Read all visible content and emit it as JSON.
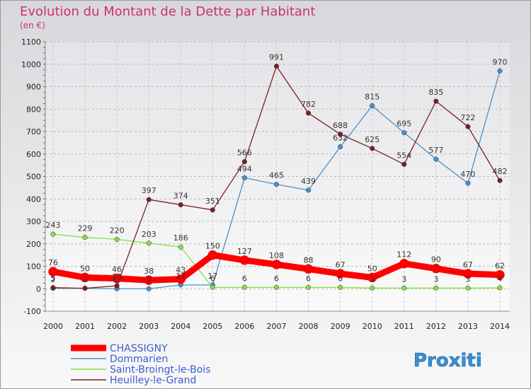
{
  "chart_data": {
    "type": "line",
    "title": "Evolution du Montant de la Dette par Habitant",
    "subtitle": "(en €)",
    "x": [
      2000,
      2001,
      2002,
      2003,
      2004,
      2005,
      2006,
      2007,
      2008,
      2009,
      2010,
      2011,
      2012,
      2013,
      2014
    ],
    "yticks": [
      -100,
      0,
      100,
      200,
      300,
      400,
      500,
      600,
      700,
      800,
      900,
      1000,
      1100
    ],
    "ylim": [
      -100,
      1100
    ],
    "grid": true,
    "legend_position": "bottom-left",
    "series": [
      {
        "name": "CHASSIGNY",
        "color": "#ff0000",
        "values": [
          76,
          50,
          46,
          38,
          43,
          150,
          127,
          108,
          88,
          67,
          50,
          112,
          90,
          67,
          62
        ]
      },
      {
        "name": "Dommarien",
        "color": "#4a90c8",
        "values": [
          2,
          2,
          0,
          0,
          17,
          17,
          494,
          465,
          439,
          632,
          815,
          695,
          577,
          470,
          970
        ]
      },
      {
        "name": "Saint-Broingt-le-Bois",
        "color": "#88dd44",
        "values": [
          243,
          229,
          220,
          203,
          186,
          6,
          6,
          6,
          6,
          6,
          3,
          3,
          3,
          3,
          4
        ]
      },
      {
        "name": "Heuilley-le-Grand",
        "color": "#7a2020",
        "values": [
          5,
          2,
          13,
          397,
          374,
          351,
          566,
          991,
          782,
          688,
          625,
          554,
          835,
          722,
          482
        ]
      }
    ]
  },
  "branding": {
    "logo_text": "Proxiti"
  }
}
